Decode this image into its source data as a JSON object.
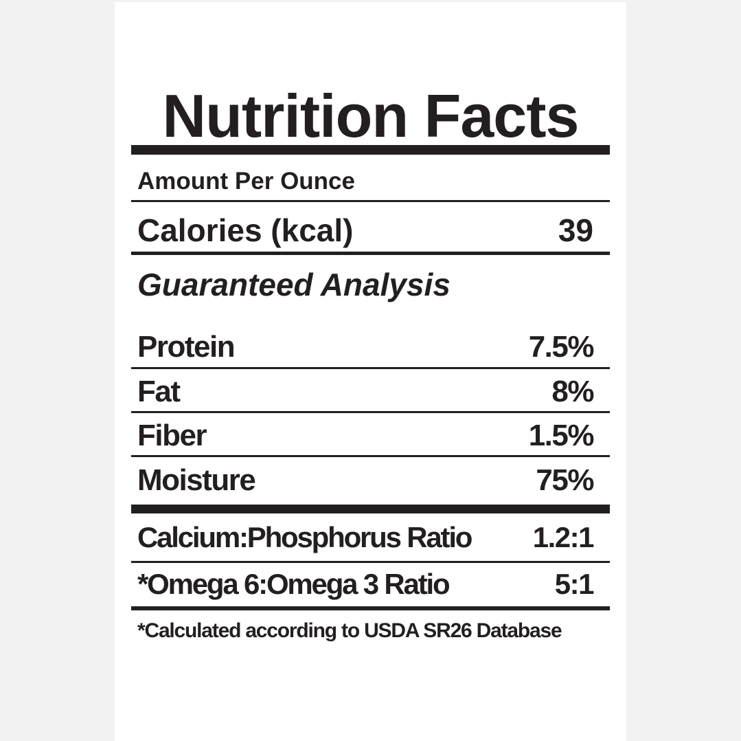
{
  "label": {
    "title": "Nutrition Facts",
    "serving": "Amount Per Ounce",
    "calories": {
      "label": "Calories (kcal)",
      "value": "39"
    },
    "section_heading": "Guaranteed Analysis",
    "nutrients": [
      {
        "label": "Protein",
        "value": "7.5%"
      },
      {
        "label": "Fat",
        "value": "8%"
      },
      {
        "label": "Fiber",
        "value": "1.5%"
      },
      {
        "label": "Moisture",
        "value": "75%"
      }
    ],
    "ratios": [
      {
        "label": "Calcium:Phosphorus Ratio",
        "value": "1.2:1"
      },
      {
        "label": "*Omega 6:Omega 3 Ratio",
        "value": "5:1"
      }
    ],
    "footnote": "*Calculated according to USDA SR26 Database"
  },
  "colors": {
    "ink": "#231f20",
    "card": "#ffffff",
    "background": "#f2f2f2"
  }
}
